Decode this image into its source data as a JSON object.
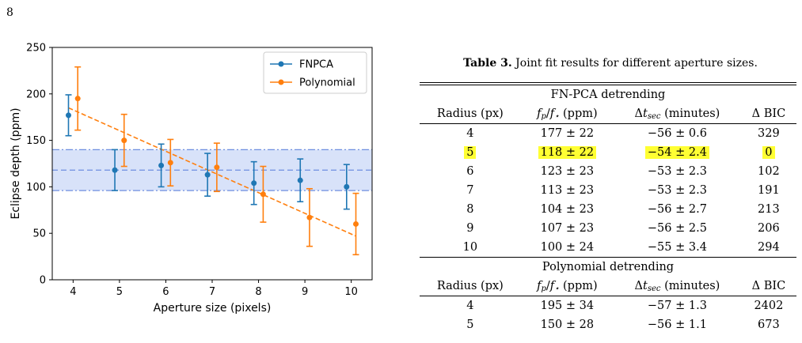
{
  "page_number": "8",
  "chart_data": {
    "type": "scatter",
    "xlabel": "Aperture size (pixels)",
    "ylabel": "Eclipse depth (ppm)",
    "xlim": [
      3.55,
      10.45
    ],
    "ylim": [
      0,
      250
    ],
    "xticks": [
      4,
      5,
      6,
      7,
      8,
      9,
      10
    ],
    "yticks": [
      0,
      50,
      100,
      150,
      200,
      250
    ],
    "legend_position": "top-right",
    "colors": {
      "FNPCA": "#1f77b4",
      "Polynomial": "#ff7f0e",
      "band": "#a9bff2",
      "band_line": "#6f8fe0"
    },
    "band": {
      "center": 118,
      "low": 96,
      "high": 140
    },
    "series": [
      {
        "name": "FNPCA",
        "x": [
          3.9,
          4.9,
          5.9,
          6.9,
          7.9,
          8.9,
          9.9
        ],
        "y": [
          177,
          118,
          123,
          113,
          104,
          107,
          100
        ],
        "yerr": [
          22,
          22,
          23,
          23,
          23,
          23,
          24
        ]
      },
      {
        "name": "Polynomial",
        "x": [
          4.1,
          5.1,
          6.1,
          7.1,
          8.1,
          9.1,
          10.1
        ],
        "y": [
          195,
          150,
          126,
          121,
          92,
          67,
          60
        ],
        "yerr": [
          34,
          28,
          25,
          26,
          30,
          31,
          33
        ]
      }
    ],
    "fit_line": {
      "x": [
        3.9,
        10.1
      ],
      "y": [
        185,
        47
      ]
    }
  },
  "table": {
    "label": "Table 3.",
    "caption": "Joint fit results for different aperture sizes.",
    "headers": [
      "Radius (px)",
      "f_p/f_⋆ (ppm)",
      "Δt_sec (minutes)",
      "Δ BIC"
    ],
    "sections": [
      {
        "title": "FN-PCA detrending",
        "rows": [
          {
            "radius": "4",
            "depth": "177 ± 22",
            "dt": "−56 ± 0.6",
            "bic": "329",
            "highlight": false
          },
          {
            "radius": "5",
            "depth": "118 ± 22",
            "dt": "−54 ± 2.4",
            "bic": "0",
            "highlight": true
          },
          {
            "radius": "6",
            "depth": "123 ± 23",
            "dt": "−53 ± 2.3",
            "bic": "102",
            "highlight": false
          },
          {
            "radius": "7",
            "depth": "113 ± 23",
            "dt": "−53 ± 2.3",
            "bic": "191",
            "highlight": false
          },
          {
            "radius": "8",
            "depth": "104 ± 23",
            "dt": "−56 ± 2.7",
            "bic": "213",
            "highlight": false
          },
          {
            "radius": "9",
            "depth": "107 ± 23",
            "dt": "−56 ± 2.5",
            "bic": "206",
            "highlight": false
          },
          {
            "radius": "10",
            "depth": "100 ± 24",
            "dt": "−55 ± 3.4",
            "bic": "294",
            "highlight": false
          }
        ]
      },
      {
        "title": "Polynomial detrending",
        "rows": [
          {
            "radius": "4",
            "depth": "195 ± 34",
            "dt": "−57 ± 1.3",
            "bic": "2402",
            "highlight": false
          },
          {
            "radius": "5",
            "depth": "150 ± 28",
            "dt": "−56 ± 1.1",
            "bic": "673",
            "highlight": false
          }
        ]
      }
    ]
  }
}
